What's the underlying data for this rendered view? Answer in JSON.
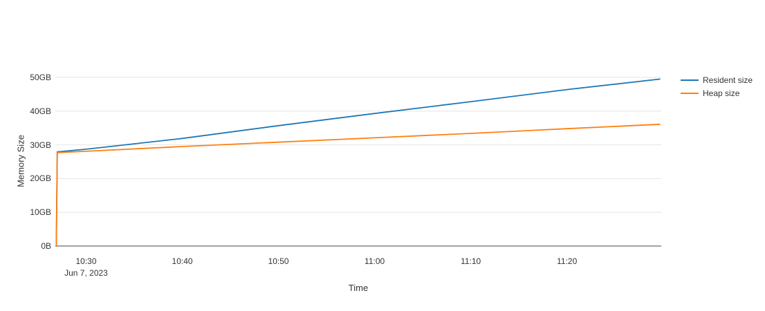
{
  "chart_data": {
    "type": "line",
    "title": "",
    "xlabel": "Time",
    "ylabel": "Memory Size",
    "x_date_label": "Jun 7, 2023",
    "x_tick_labels": [
      "10:30",
      "10:40",
      "10:50",
      "11:00",
      "11:10",
      "11:20"
    ],
    "x_tick_values": [
      30,
      40,
      50,
      60,
      70,
      80
    ],
    "y_tick_labels": [
      "0B",
      "10GB",
      "20GB",
      "30GB",
      "40GB",
      "50GB"
    ],
    "y_tick_values": [
      0,
      10,
      20,
      30,
      40,
      50
    ],
    "x_unit": "minutes after 10:00, Jun 7 2023",
    "y_unit": "GB",
    "xlim": [
      26.8,
      89.8
    ],
    "ylim": [
      0,
      50
    ],
    "grid": "horizontal",
    "legend_position": "top-right-outside",
    "colors": {
      "grid": "#e5e5e5",
      "axis": "#444444",
      "text": "#333333"
    },
    "series": [
      {
        "name": "Resident size",
        "color": "#1f77b4",
        "points": [
          [
            26.9,
            0
          ],
          [
            27.0,
            27.9
          ],
          [
            30,
            28.7
          ],
          [
            40,
            31.9
          ],
          [
            50,
            35.7
          ],
          [
            60,
            39.3
          ],
          [
            70,
            42.8
          ],
          [
            80,
            46.4
          ],
          [
            89.7,
            49.5
          ]
        ]
      },
      {
        "name": "Heap size",
        "color": "#ff7f0e",
        "points": [
          [
            26.9,
            0
          ],
          [
            27.0,
            27.7
          ],
          [
            30,
            28.1
          ],
          [
            40,
            29.5
          ],
          [
            50,
            30.8
          ],
          [
            60,
            32.1
          ],
          [
            70,
            33.4
          ],
          [
            80,
            34.8
          ],
          [
            89.7,
            36.1
          ]
        ]
      }
    ]
  }
}
